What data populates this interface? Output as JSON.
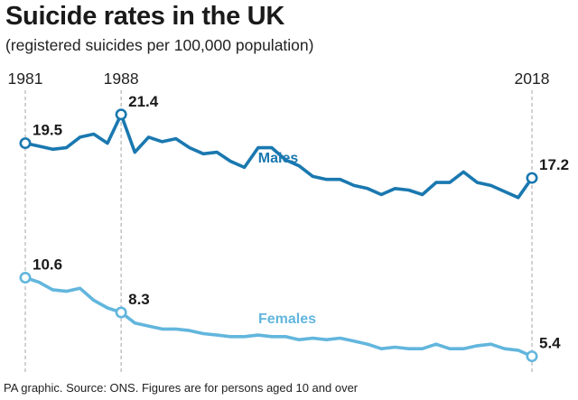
{
  "title": "Suicide rates in the UK",
  "subtitle": "(registered suicides per 100,000 population)",
  "source": "PA graphic. Source: ONS. Figures are for persons aged 10 and over",
  "colors": {
    "males": "#1a78b0",
    "females": "#62b6dd",
    "guide": "#b3b3b3"
  },
  "chart_data": {
    "type": "line",
    "title": "Suicide rates in the UK",
    "subtitle": "(registered suicides per 100,000 population)",
    "xlabel": "",
    "ylabel": "registered suicides per 100,000 population",
    "x": [
      1981,
      1982,
      1983,
      1984,
      1985,
      1986,
      1987,
      1988,
      1989,
      1990,
      1991,
      1992,
      1993,
      1994,
      1995,
      1996,
      1997,
      1998,
      1999,
      2000,
      2001,
      2002,
      2003,
      2004,
      2005,
      2006,
      2007,
      2008,
      2009,
      2010,
      2011,
      2012,
      2013,
      2014,
      2015,
      2016,
      2017,
      2018
    ],
    "x_ticks": [
      "1981",
      "1988",
      "2018"
    ],
    "ylim": [
      4,
      23
    ],
    "grid": false,
    "series": [
      {
        "name": "Males",
        "values": [
          19.5,
          19.3,
          19.1,
          19.2,
          19.9,
          20.1,
          19.5,
          21.4,
          18.9,
          19.9,
          19.6,
          19.8,
          19.2,
          18.8,
          18.9,
          18.3,
          17.9,
          19.2,
          19.2,
          18.4,
          18.0,
          17.3,
          17.1,
          17.1,
          16.7,
          16.5,
          16.1,
          16.5,
          16.4,
          16.1,
          16.9,
          16.9,
          17.6,
          16.9,
          16.7,
          16.3,
          15.9,
          17.2
        ],
        "annotations": [
          {
            "year": 1981,
            "label": "19.5"
          },
          {
            "year": 1988,
            "label": "21.4"
          },
          {
            "year": 2018,
            "label": "17.2"
          }
        ]
      },
      {
        "name": "Females",
        "values": [
          10.6,
          10.3,
          9.8,
          9.7,
          9.9,
          9.1,
          8.6,
          8.3,
          7.6,
          7.4,
          7.2,
          7.2,
          7.1,
          6.9,
          6.8,
          6.7,
          6.7,
          6.8,
          6.7,
          6.7,
          6.5,
          6.6,
          6.5,
          6.6,
          6.4,
          6.2,
          5.9,
          6.0,
          5.9,
          5.9,
          6.2,
          5.9,
          5.9,
          6.1,
          6.2,
          5.9,
          5.8,
          5.4
        ],
        "annotations": [
          {
            "year": 1981,
            "label": "10.6"
          },
          {
            "year": 1988,
            "label": "8.3"
          },
          {
            "year": 2018,
            "label": "5.4"
          }
        ]
      }
    ]
  }
}
